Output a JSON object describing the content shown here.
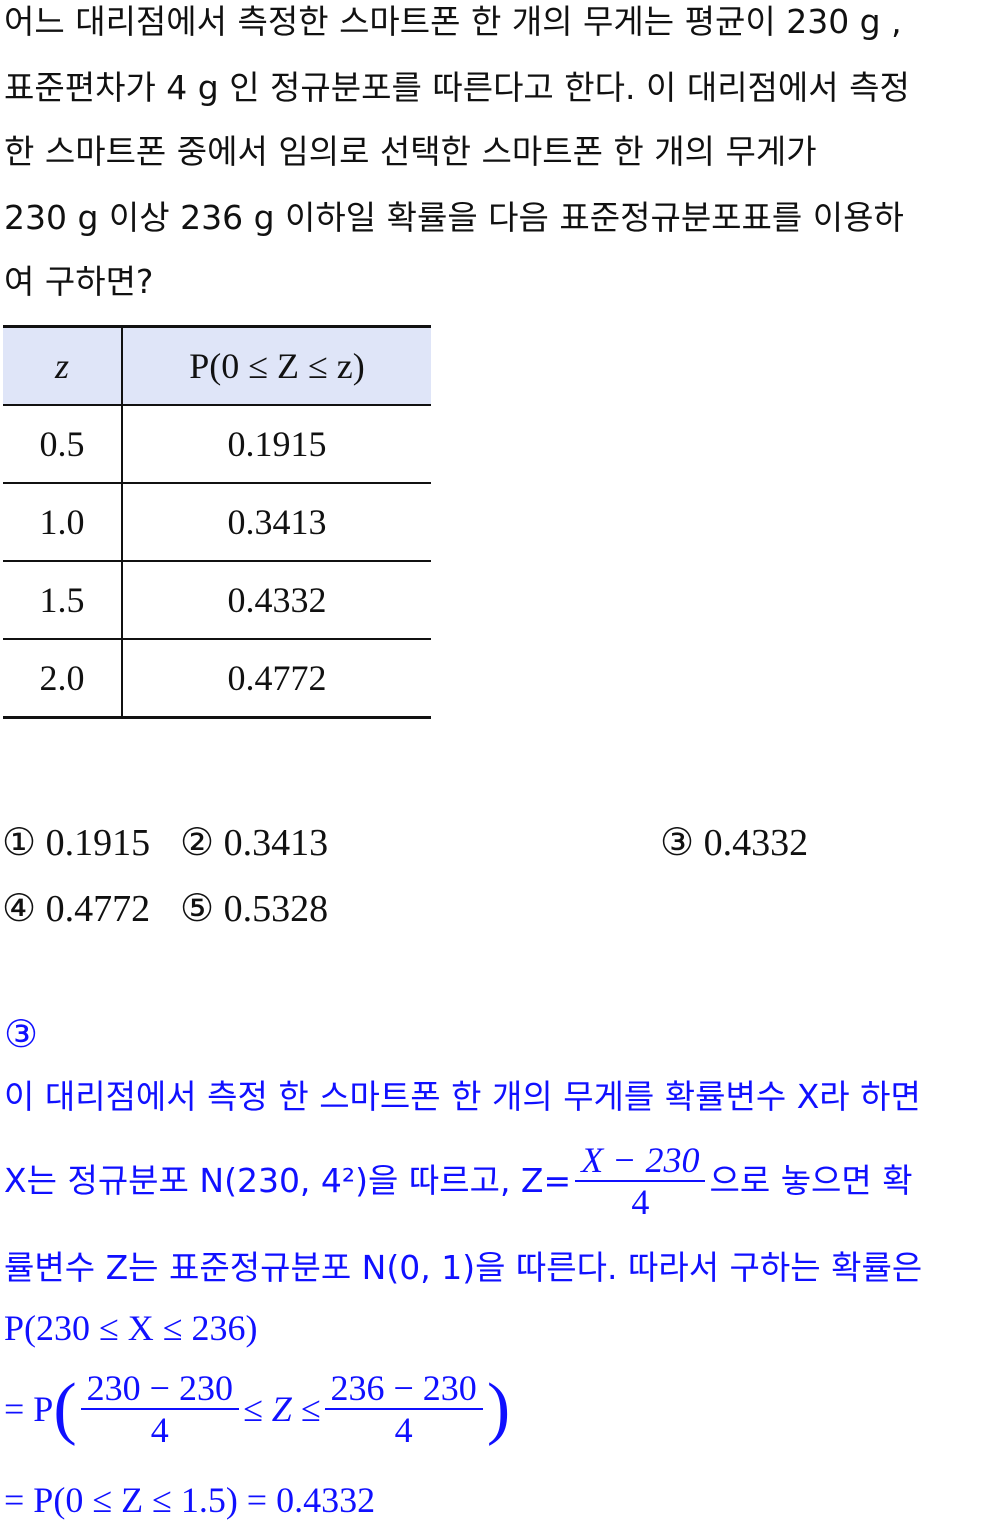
{
  "question": {
    "lines": [
      "어느 대리점에서 측정한 스마트폰 한 개의 무게는 평균이 230 g ,",
      "표준편차가 4 g 인 정규분포를 따른다고 한다. 이 대리점에서 측정",
      "한 스마트폰 중에서 임의로 선택한 스마트폰 한 개의 무게가",
      "230 g 이상 236 g 이하일 확률을 다음 표준정규분포표를 이용하",
      "여 구하면?"
    ]
  },
  "table": {
    "headers": [
      "z",
      "P(0 ≤ Z ≤ z)"
    ],
    "rows": [
      [
        "0.5",
        "0.1915"
      ],
      [
        "1.0",
        "0.3413"
      ],
      [
        "1.5",
        "0.4332"
      ],
      [
        "2.0",
        "0.4772"
      ]
    ]
  },
  "choices": [
    "① 0.1915",
    "② 0.3413",
    "③ 0.4332",
    "④ 0.4772",
    "⑤ 0.5328"
  ],
  "answer": {
    "mark": "③",
    "line1": "이 대리점에서 측정 한 스마트폰 한 개의 무게를 확률변수 X라 하면",
    "line2a": "X는 정규분포 N(230, 4²)을 따르고, Z=",
    "line2_num": "X − 230",
    "line2_den": "4",
    "line2b": "으로 놓으면 확",
    "line3": "률변수 Z는 표준정규분포 N(0, 1)을 따른다. 따라서 구하는 확률은",
    "line4": "P(230 ≤ X ≤ 236)",
    "line5_pre": "= P",
    "line5_num1": "230 − 230",
    "line5_den1": "4",
    "line5_mid": "≤ Z ≤",
    "line5_num2": "236 − 230",
    "line5_den2": "4",
    "line6": "= P(0 ≤ Z ≤ 1.5) = 0.4332"
  },
  "colors": {
    "answer": "#1010ff",
    "table_header": "#dfe5f8"
  }
}
